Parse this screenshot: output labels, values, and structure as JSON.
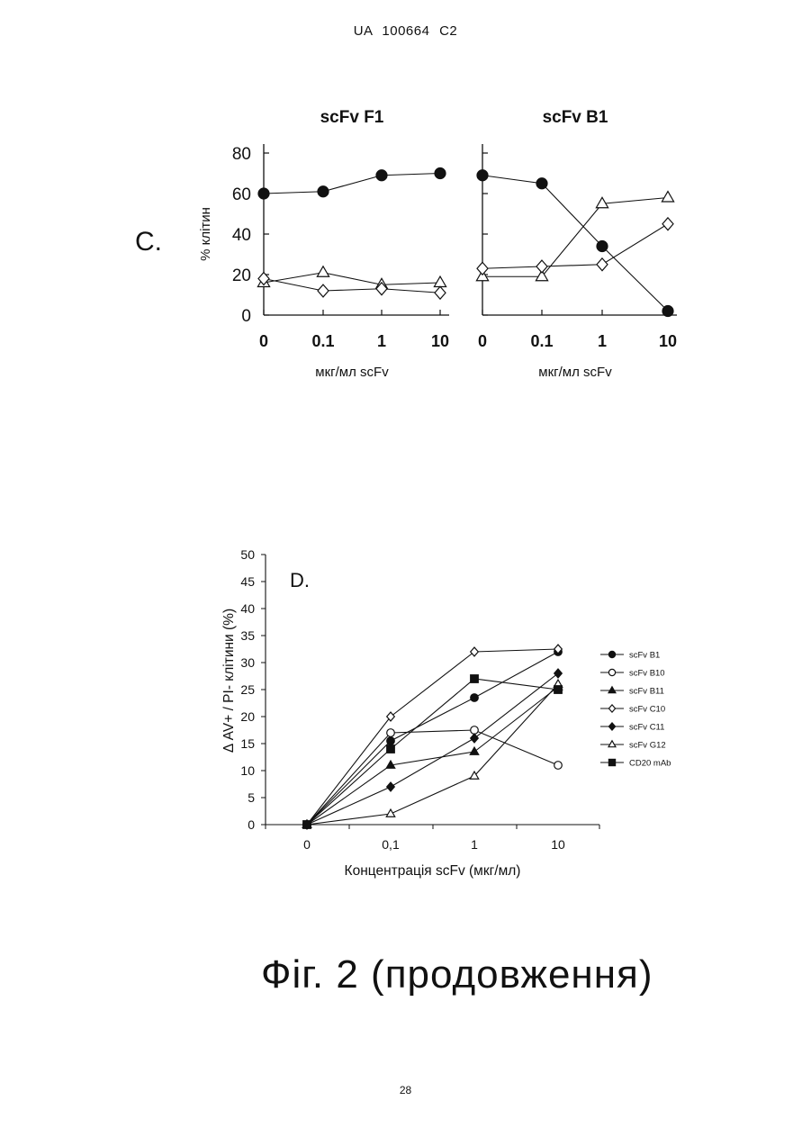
{
  "header": {
    "text": "UA   100664   C2"
  },
  "panel_c": {
    "label": "C."
  },
  "panel_d": {
    "label": "D."
  },
  "figure_caption": "Фіг. 2 (продовження)",
  "page_number": "28",
  "chart_data": [
    {
      "type": "line",
      "title": "scFv F1",
      "xlabel": "мкг/мл scFv",
      "ylabel": "% клітин",
      "categories": [
        "0",
        "0.1",
        "1",
        "10"
      ],
      "ylim": [
        0,
        80
      ],
      "yticks": [
        "0",
        "20",
        "40",
        "60",
        "80"
      ],
      "series": [
        {
          "marker": "filled-circle",
          "values": [
            60,
            61,
            69,
            70
          ]
        },
        {
          "marker": "open-triangle",
          "values": [
            16,
            21,
            15,
            16
          ]
        },
        {
          "marker": "open-diamond",
          "values": [
            18,
            12,
            13,
            11
          ]
        }
      ]
    },
    {
      "type": "line",
      "title": "scFv B1",
      "xlabel": "мкг/мл scFv",
      "ylabel": "",
      "categories": [
        "0",
        "0.1",
        "1",
        "10"
      ],
      "ylim": [
        0,
        80
      ],
      "series": [
        {
          "marker": "filled-circle",
          "values": [
            69,
            65,
            34,
            2
          ]
        },
        {
          "marker": "open-triangle",
          "values": [
            19,
            19,
            55,
            58
          ]
        },
        {
          "marker": "open-diamond",
          "values": [
            23,
            24,
            25,
            45
          ]
        }
      ]
    },
    {
      "type": "line",
      "title": "",
      "xlabel": "Концентрація scFv  (мкг/мл)",
      "ylabel": "Δ AV+ / PI- клітини  (%)",
      "categories": [
        "0",
        "0,1",
        "1",
        "10"
      ],
      "ylim": [
        0,
        50
      ],
      "yticks": [
        "0",
        "5",
        "10",
        "15",
        "20",
        "25",
        "30",
        "35",
        "40",
        "45",
        "50"
      ],
      "legend_position": "right",
      "series": [
        {
          "name": "scFv B1",
          "marker": "filled-circle",
          "values": [
            0,
            15.5,
            23.5,
            32
          ]
        },
        {
          "name": "scFv B10",
          "marker": "open-circle",
          "values": [
            0,
            17,
            17.5,
            11
          ]
        },
        {
          "name": "scFv B11",
          "marker": "filled-triangle",
          "values": [
            0,
            11,
            13.5,
            25.5
          ]
        },
        {
          "name": "scFv C10",
          "marker": "open-diamond",
          "values": [
            0,
            20,
            32,
            32.5
          ]
        },
        {
          "name": "scFv C11",
          "marker": "filled-diamond",
          "values": [
            0,
            7,
            16,
            28
          ]
        },
        {
          "name": "scFv G12",
          "marker": "open-triangle",
          "values": [
            0,
            2,
            9,
            26
          ]
        },
        {
          "name": "CD20 mAb",
          "marker": "filled-square",
          "values": [
            0,
            14,
            27,
            25
          ]
        }
      ]
    }
  ]
}
